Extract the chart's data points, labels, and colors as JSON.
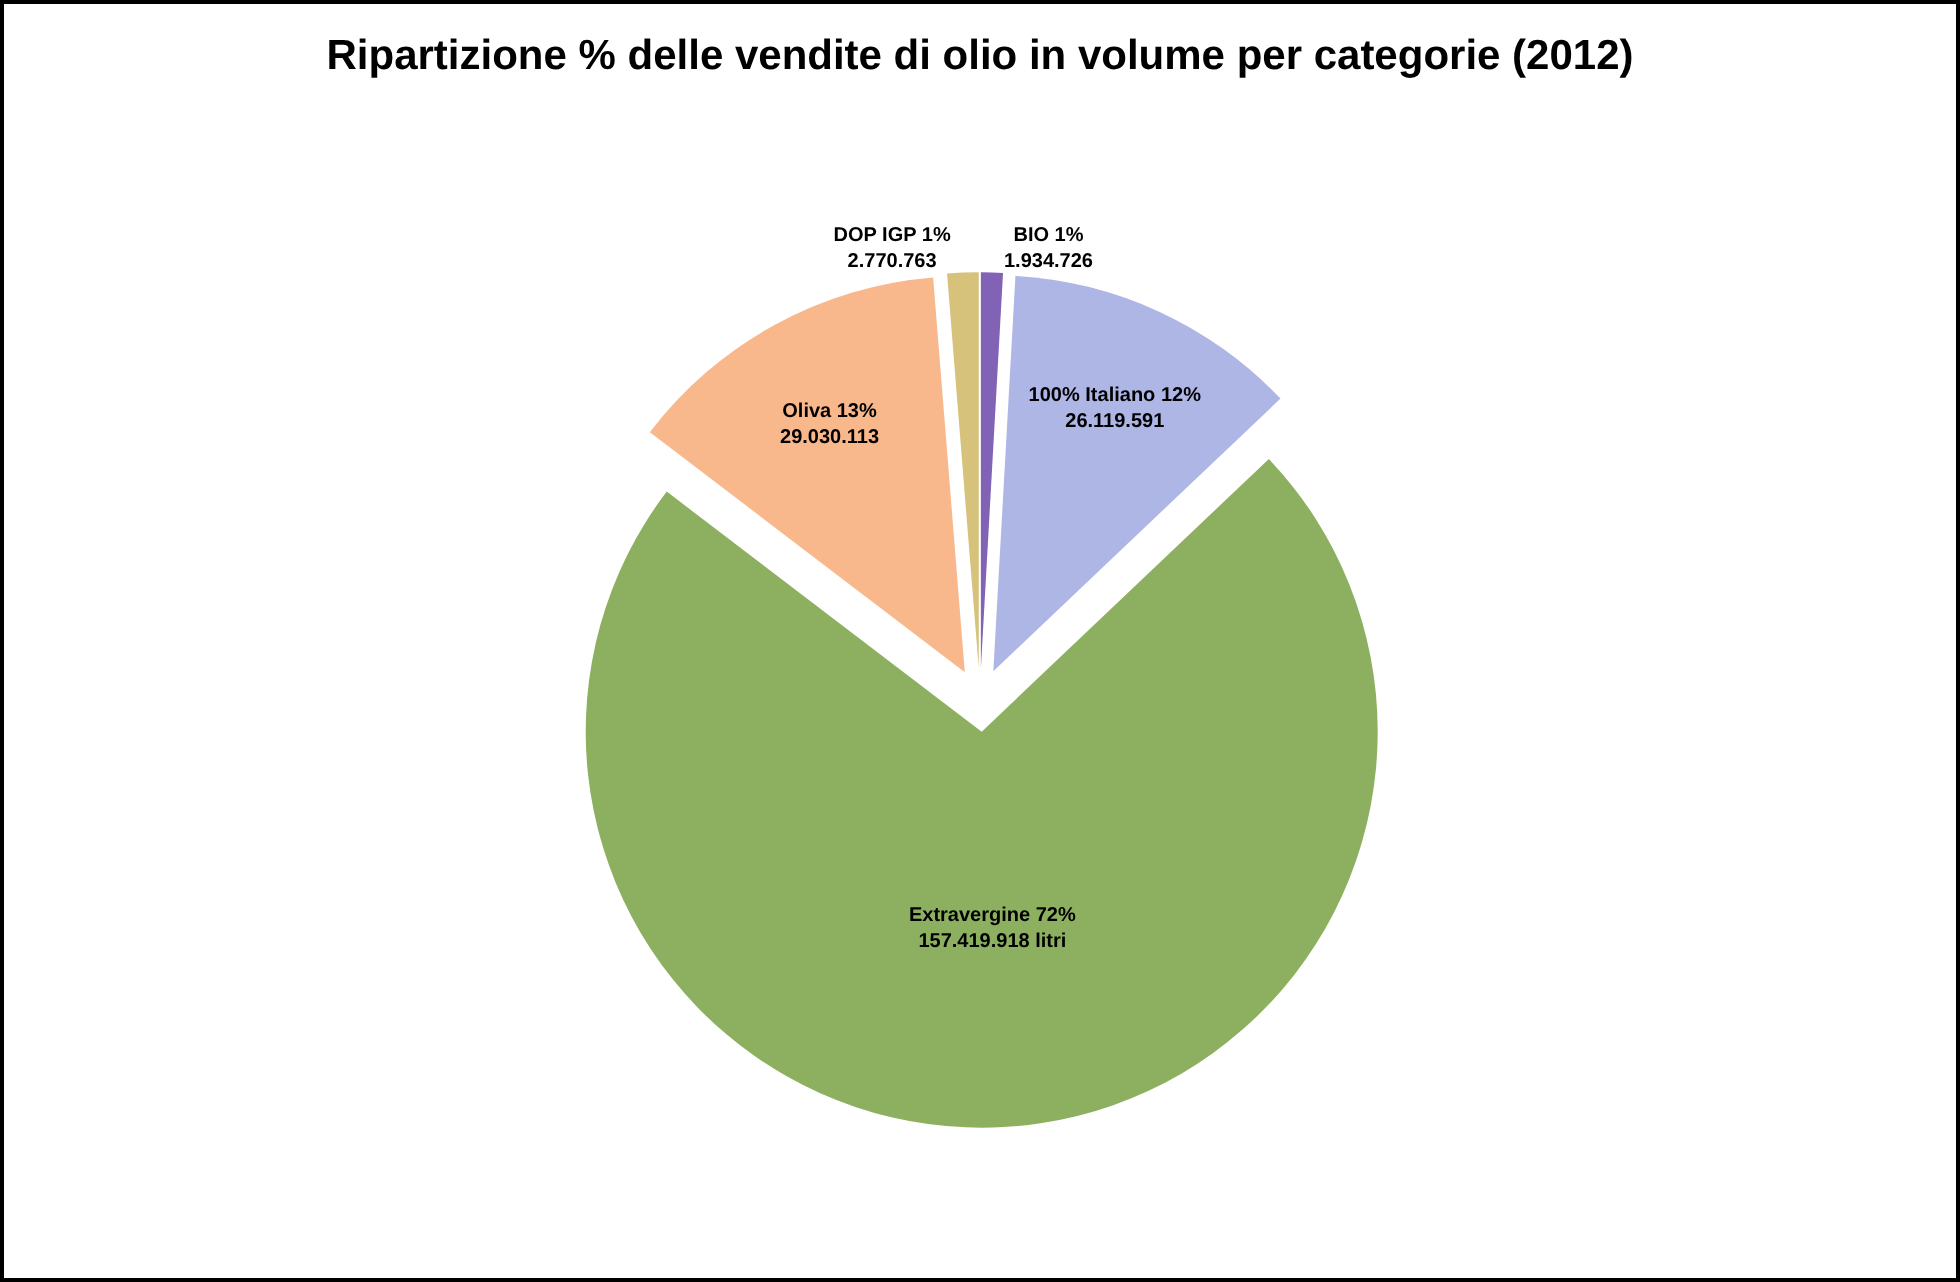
{
  "chart_data": {
    "type": "pie",
    "title": "Ripartizione % delle vendite di olio in volume per categorie (2012)",
    "categories": [
      "BIO",
      "100% Italiano",
      "Extravergine",
      "Oliva",
      "DOP IGP"
    ],
    "values": [
      1934726,
      26119591,
      157419918,
      29030113,
      2770763
    ],
    "colors": [
      "#8262b4",
      "#aeb6e6",
      "#8db060",
      "#f8b88c",
      "#d6c27a"
    ],
    "value_labels": [
      "1%\n1.934.726",
      "12%\n26.119.591",
      "72%\n157.419.918 litri",
      "13%\n29.030.113",
      "1%\n2.770.763"
    ]
  }
}
